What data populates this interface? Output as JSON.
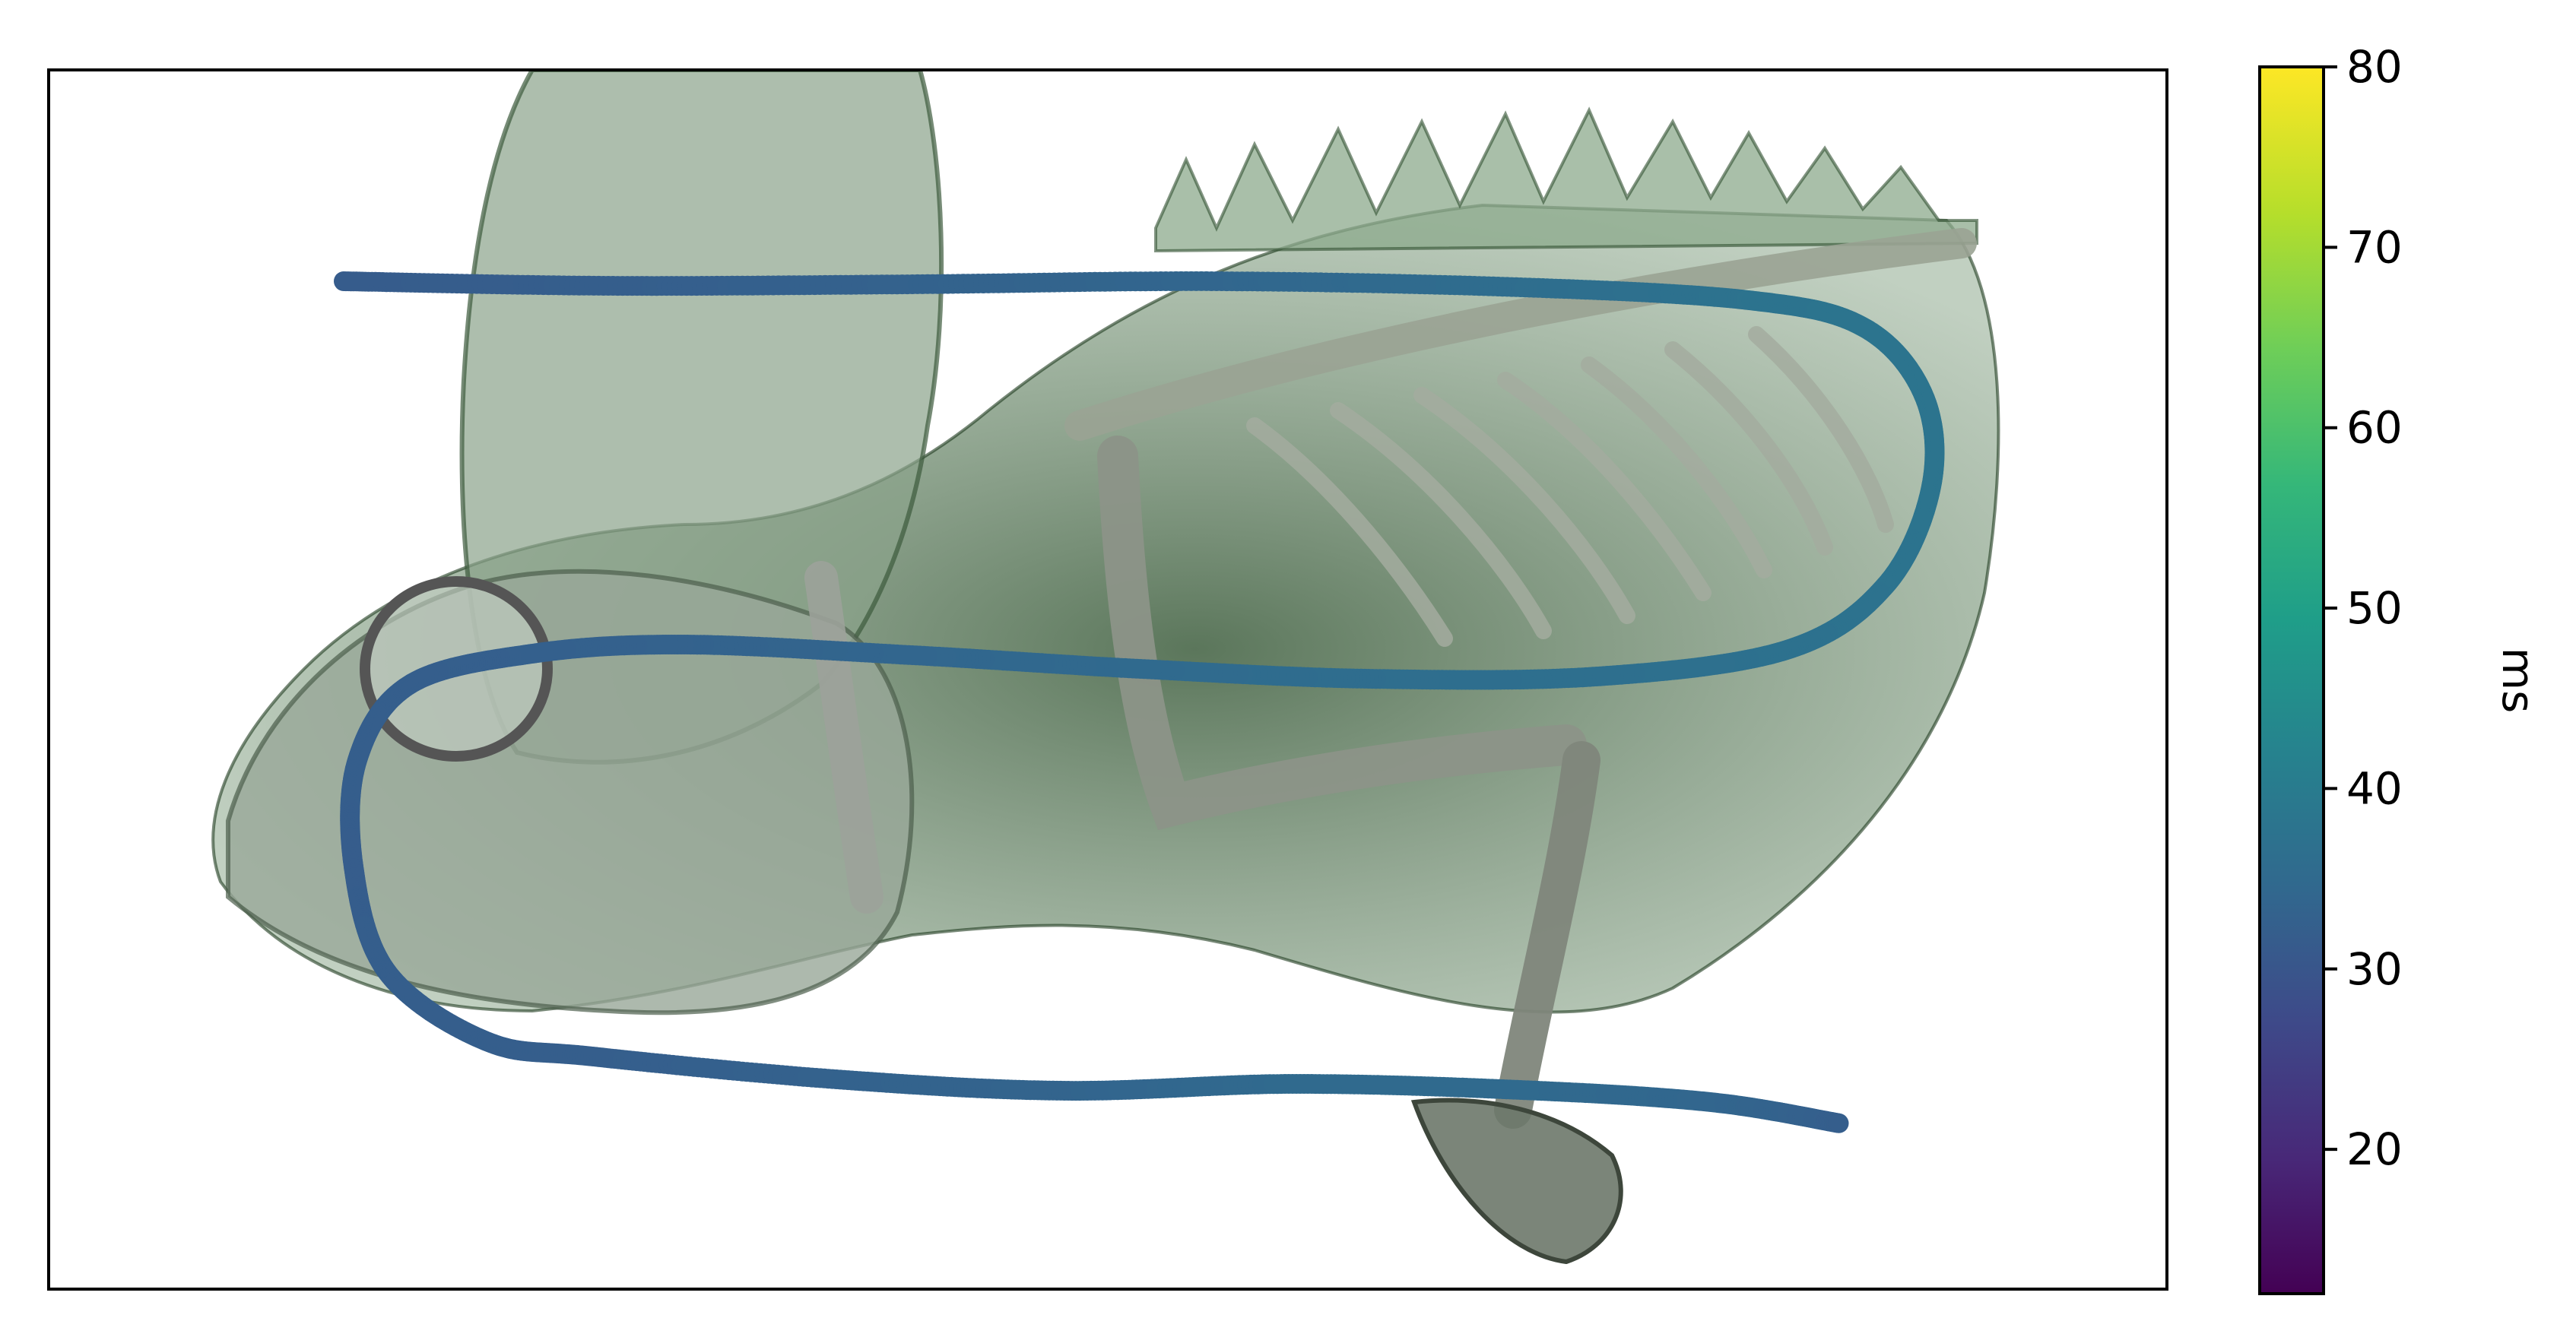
{
  "chart_data": {
    "type": "scatter",
    "title": "",
    "xlabel": "",
    "ylabel": "",
    "axes": {
      "ticks_visible": false,
      "grid": false
    },
    "background_image": "3d-rendered lizard skeleton (lateral view, semi-transparent green soft tissue)",
    "series": [
      {
        "colormap": "viridis",
        "marker": "dot",
        "path_description": "serpentine sweep: top row left-to-right, loop back right-to-left through the middle, loop again and sweep left-to-right along the bottom",
        "color_value_range_ms": [
          31,
          38
        ]
      }
    ],
    "colorbar": {
      "label": "ms",
      "colormap": "viridis",
      "range": [
        12,
        80
      ],
      "ticks": [
        "20",
        "30",
        "40",
        "50",
        "60",
        "70",
        "80"
      ],
      "tick_values": [
        20,
        30,
        40,
        50,
        60,
        70,
        80
      ]
    }
  }
}
